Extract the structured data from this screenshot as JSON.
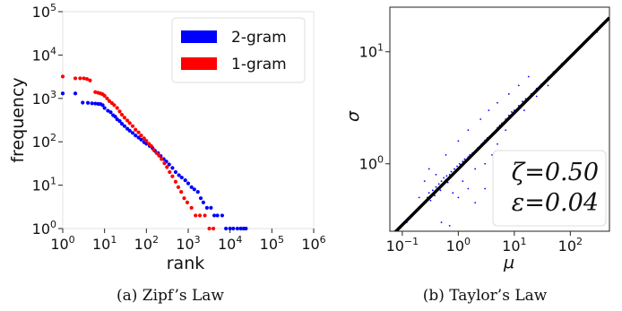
{
  "chart_data": [
    {
      "type": "scatter",
      "xlabel": "rank",
      "ylabel": "frequency",
      "x_scale": "log",
      "y_scale": "log",
      "xlim": [
        1,
        1000000
      ],
      "ylim": [
        1,
        100000
      ],
      "x_ticks": [
        {
          "base": "10",
          "exp": "0",
          "value": 1
        },
        {
          "base": "10",
          "exp": "1",
          "value": 10
        },
        {
          "base": "10",
          "exp": "2",
          "value": 100
        },
        {
          "base": "10",
          "exp": "3",
          "value": 1000
        },
        {
          "base": "10",
          "exp": "4",
          "value": 10000
        },
        {
          "base": "10",
          "exp": "5",
          "value": 100000
        },
        {
          "base": "10",
          "exp": "6",
          "value": 1000000
        }
      ],
      "y_ticks": [
        {
          "base": "10",
          "exp": "0",
          "value": 1
        },
        {
          "base": "10",
          "exp": "1",
          "value": 10
        },
        {
          "base": "10",
          "exp": "2",
          "value": 100
        },
        {
          "base": "10",
          "exp": "3",
          "value": 1000
        },
        {
          "base": "10",
          "exp": "4",
          "value": 10000
        },
        {
          "base": "10",
          "exp": "5",
          "value": 100000
        }
      ],
      "legend_position": "top-right",
      "grid": false,
      "caption": "(a) Zipf’s Law",
      "series": [
        {
          "name": "2-gram",
          "color": "#0000ff",
          "points": [
            [
              1,
              1300
            ],
            [
              2,
              1300
            ],
            [
              3,
              800
            ],
            [
              4,
              790
            ],
            [
              5,
              770
            ],
            [
              6,
              760
            ],
            [
              7,
              750
            ],
            [
              8,
              740
            ],
            [
              9,
              700
            ],
            [
              10,
              600
            ],
            [
              12,
              520
            ],
            [
              14,
              480
            ],
            [
              16,
              410
            ],
            [
              18,
              380
            ],
            [
              20,
              330
            ],
            [
              23,
              300
            ],
            [
              26,
              260
            ],
            [
              30,
              230
            ],
            [
              35,
              200
            ],
            [
              40,
              180
            ],
            [
              47,
              160
            ],
            [
              55,
              140
            ],
            [
              65,
              125
            ],
            [
              75,
              112
            ],
            [
              88,
              98
            ],
            [
              100,
              90
            ],
            [
              120,
              80
            ],
            [
              140,
              72
            ],
            [
              160,
              62
            ],
            [
              190,
              55
            ],
            [
              220,
              47
            ],
            [
              260,
              40
            ],
            [
              300,
              35
            ],
            [
              350,
              30
            ],
            [
              420,
              25
            ],
            [
              500,
              20
            ],
            [
              600,
              17
            ],
            [
              700,
              15
            ],
            [
              850,
              13
            ],
            [
              1000,
              11
            ],
            [
              1200,
              9
            ],
            [
              1400,
              8
            ],
            [
              1700,
              7
            ],
            [
              2000,
              5
            ],
            [
              2300,
              4
            ],
            [
              2800,
              3
            ],
            [
              3500,
              3
            ],
            [
              4200,
              2
            ],
            [
              5000,
              2
            ],
            [
              6500,
              2
            ],
            [
              8000,
              1
            ],
            [
              10000,
              1
            ],
            [
              12000,
              1
            ],
            [
              15000,
              1
            ],
            [
              18000,
              1
            ],
            [
              21000,
              1
            ],
            [
              24000,
              1
            ]
          ]
        },
        {
          "name": "1-gram",
          "color": "#ff0000",
          "points": [
            [
              1,
              3200
            ],
            [
              2,
              2900
            ],
            [
              2.6,
              2900
            ],
            [
              3.2,
              2900
            ],
            [
              3.8,
              2800
            ],
            [
              4.5,
              2600
            ],
            [
              6,
              1400
            ],
            [
              7,
              1350
            ],
            [
              8,
              1300
            ],
            [
              9,
              1250
            ],
            [
              10,
              1150
            ],
            [
              11.5,
              1000
            ],
            [
              13,
              870
            ],
            [
              15,
              780
            ],
            [
              17,
              700
            ],
            [
              20,
              600
            ],
            [
              23,
              500
            ],
            [
              26,
              420
            ],
            [
              30,
              360
            ],
            [
              35,
              310
            ],
            [
              40,
              270
            ],
            [
              47,
              230
            ],
            [
              55,
              190
            ],
            [
              65,
              165
            ],
            [
              75,
              140
            ],
            [
              88,
              120
            ],
            [
              100,
              105
            ],
            [
              115,
              90
            ],
            [
              130,
              80
            ],
            [
              150,
              65
            ],
            [
              175,
              55
            ],
            [
              200,
              48
            ],
            [
              230,
              40
            ],
            [
              270,
              32
            ],
            [
              310,
              26
            ],
            [
              360,
              20
            ],
            [
              420,
              16
            ],
            [
              500,
              12
            ],
            [
              580,
              9
            ],
            [
              680,
              7
            ],
            [
              800,
              5
            ],
            [
              950,
              4
            ],
            [
              1200,
              3
            ],
            [
              1500,
              2
            ],
            [
              1900,
              2
            ],
            [
              2500,
              2
            ],
            [
              3200,
              1
            ],
            [
              4000,
              1
            ]
          ]
        }
      ]
    },
    {
      "type": "scatter",
      "xlabel": "μ",
      "ylabel": "σ",
      "x_scale": "log",
      "y_scale": "log",
      "xlim": [
        0.06,
        500
      ],
      "ylim": [
        0.25,
        25
      ],
      "x_ticks": [
        {
          "base": "10",
          "exp": "−1",
          "value": 0.1
        },
        {
          "base": "10",
          "exp": "0",
          "value": 1
        },
        {
          "base": "10",
          "exp": "1",
          "value": 10
        },
        {
          "base": "10",
          "exp": "2",
          "value": 100
        }
      ],
      "y_ticks": [
        {
          "base": "10",
          "exp": "0",
          "value": 1
        },
        {
          "base": "10",
          "exp": "1",
          "value": 10
        }
      ],
      "grid": false,
      "caption": "(b) Taylor’s Law",
      "fit_line": {
        "coefficient": 0.9,
        "exponent": 0.5,
        "color": "#000000"
      },
      "stats": {
        "zeta": "ζ=0.50",
        "epsilon": "ε=0.04"
      },
      "stats_position": "bottom-right",
      "points_color": "#0000ff",
      "cloud_points": [
        [
          0.12,
          0.3
        ],
        [
          0.15,
          0.34
        ],
        [
          0.18,
          0.38
        ],
        [
          0.2,
          0.5
        ],
        [
          0.22,
          0.42
        ],
        [
          0.25,
          0.45
        ],
        [
          0.28,
          0.5
        ],
        [
          0.3,
          0.55
        ],
        [
          0.32,
          0.47
        ],
        [
          0.35,
          0.58
        ],
        [
          0.38,
          0.52
        ],
        [
          0.4,
          0.62
        ],
        [
          0.42,
          0.6
        ],
        [
          0.45,
          0.66
        ],
        [
          0.48,
          0.58
        ],
        [
          0.5,
          0.7
        ],
        [
          0.52,
          0.65
        ],
        [
          0.55,
          0.75
        ],
        [
          0.6,
          0.72
        ],
        [
          0.62,
          0.78
        ],
        [
          0.65,
          0.68
        ],
        [
          0.7,
          0.8
        ],
        [
          0.72,
          0.75
        ],
        [
          0.75,
          0.85
        ],
        [
          0.8,
          0.82
        ],
        [
          0.85,
          0.9
        ],
        [
          0.9,
          0.88
        ],
        [
          0.95,
          0.95
        ],
        [
          1.0,
          0.9
        ],
        [
          1.05,
          1.0
        ],
        [
          1.1,
          0.98
        ],
        [
          1.2,
          1.05
        ],
        [
          1.3,
          1.1
        ],
        [
          1.4,
          1.08
        ],
        [
          1.5,
          1.15
        ],
        [
          1.6,
          1.2
        ],
        [
          1.7,
          1.18
        ],
        [
          1.8,
          1.25
        ],
        [
          2.0,
          1.3
        ],
        [
          2.2,
          1.38
        ],
        [
          2.4,
          1.42
        ],
        [
          2.6,
          1.5
        ],
        [
          2.8,
          1.55
        ],
        [
          3.0,
          1.62
        ],
        [
          3.3,
          1.7
        ],
        [
          3.6,
          1.75
        ],
        [
          4.0,
          1.85
        ],
        [
          4.5,
          1.95
        ],
        [
          5.0,
          2.1
        ],
        [
          5.5,
          2.2
        ],
        [
          6.0,
          2.3
        ],
        [
          7.0,
          2.5
        ],
        [
          8.0,
          2.7
        ],
        [
          9.0,
          2.9
        ],
        [
          10,
          3.0
        ],
        [
          12,
          3.3
        ],
        [
          14,
          3.6
        ],
        [
          16,
          3.8
        ],
        [
          20,
          4.2
        ],
        [
          25,
          4.7
        ],
        [
          30,
          5.1
        ],
        [
          40,
          5.9
        ],
        [
          50,
          6.6
        ],
        [
          70,
          7.8
        ],
        [
          100,
          9.2
        ],
        [
          0.5,
          0.3
        ],
        [
          0.7,
          0.28
        ],
        [
          1.0,
          0.5
        ],
        [
          1.5,
          0.6
        ],
        [
          2.0,
          0.9
        ],
        [
          3.0,
          1.0
        ],
        [
          4.0,
          1.2
        ],
        [
          0.3,
          0.9
        ],
        [
          0.6,
          1.2
        ],
        [
          1.0,
          1.6
        ],
        [
          1.5,
          2.0
        ],
        [
          2.5,
          2.5
        ],
        [
          3.5,
          3.0
        ],
        [
          5.0,
          3.5
        ],
        [
          8.0,
          4.2
        ],
        [
          12,
          5.0
        ],
        [
          18,
          6.0
        ],
        [
          2.0,
          0.45
        ],
        [
          3.0,
          0.6
        ],
        [
          5.0,
          1.5
        ],
        [
          7.0,
          2.0
        ],
        [
          1.2,
          0.7
        ],
        [
          0.8,
          0.55
        ],
        [
          0.4,
          0.8
        ],
        [
          0.25,
          0.7
        ],
        [
          15,
          3.0
        ],
        [
          25,
          4.0
        ],
        [
          40,
          5.0
        ],
        [
          60,
          7.0
        ],
        [
          150,
          11
        ],
        [
          200,
          13
        ],
        [
          300,
          15
        ]
      ]
    }
  ]
}
